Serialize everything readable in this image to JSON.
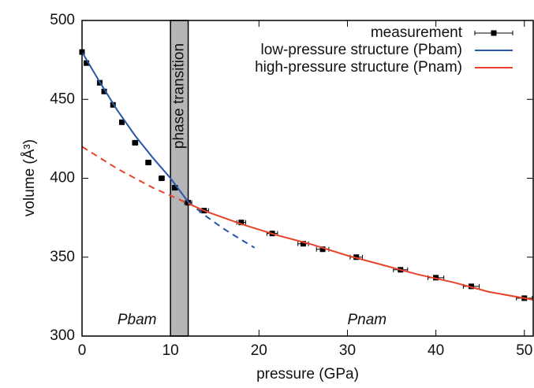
{
  "chart_data": {
    "type": "line",
    "xlabel": "pressure (GPa)",
    "ylabel": "volume (Å³)",
    "xlim": [
      0,
      51
    ],
    "ylim": [
      300,
      500
    ],
    "xticks": [
      0,
      10,
      20,
      30,
      40,
      50
    ],
    "yticks": [
      300,
      350,
      400,
      450,
      500
    ],
    "band": {
      "range": [
        10,
        12
      ],
      "label": "phase transition",
      "color": "#b4b6b8"
    },
    "annotations": [
      {
        "text": "Pbam",
        "x": 4,
        "y": 310
      },
      {
        "text": "Pnam",
        "x": 30,
        "y": 310
      }
    ],
    "legend": "top-right",
    "series": [
      {
        "name": "measurement",
        "color": "#000000",
        "marker": "square",
        "x": [
          0,
          0.5,
          2,
          2.5,
          3.5,
          4.5,
          6,
          7.5,
          9,
          10.5,
          12,
          13.8,
          18,
          21.5,
          25,
          27.2,
          31,
          36,
          40,
          44,
          50
        ],
        "values": [
          480,
          473,
          460.5,
          455,
          446.5,
          435.5,
          422.5,
          410,
          400,
          394,
          384.5,
          379.5,
          372,
          365,
          358.5,
          355,
          350,
          342,
          337,
          331.5,
          324
        ],
        "xerr": [
          0.2,
          0.2,
          0.2,
          0.2,
          0.2,
          0.2,
          0.3,
          0.3,
          0.3,
          0.3,
          0.4,
          0.5,
          0.5,
          0.6,
          0.6,
          0.7,
          0.7,
          0.8,
          0.9,
          0.9,
          0.9
        ]
      },
      {
        "name": "low-pressure structure (Pbam)",
        "color": "#2a55a8",
        "solid_range": [
          0,
          12
        ],
        "x": [
          0,
          2,
          4,
          6,
          8,
          10,
          12,
          14,
          16,
          18,
          19.5
        ],
        "values": [
          480,
          461,
          443,
          427,
          413,
          400,
          385,
          376,
          368,
          361,
          356
        ]
      },
      {
        "name": "high-pressure structure (Pnam)",
        "color": "#e8432a",
        "solid_range": [
          12,
          51
        ],
        "x": [
          0,
          2,
          4,
          6,
          8,
          10,
          12,
          14,
          18,
          22,
          26,
          30,
          34,
          38,
          42,
          46,
          51
        ],
        "values": [
          420,
          413,
          406,
          400,
          394,
          389,
          384,
          379,
          371,
          364,
          358,
          351,
          345,
          339,
          334,
          328,
          323
        ]
      }
    ]
  }
}
